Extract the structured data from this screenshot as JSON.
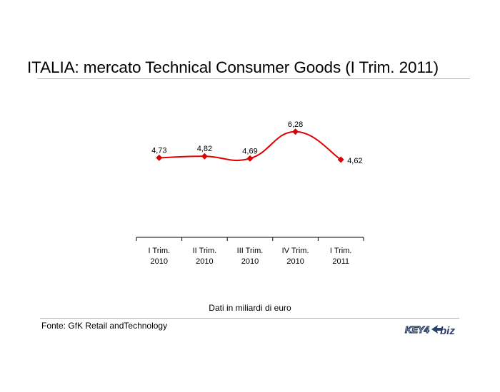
{
  "title": "ITALIA: mercato Technical Consumer Goods (I Trim. 2011)",
  "note": "Dati in miliardi di euro",
  "source": "Fonte: GfK Retail andTechnology",
  "logo": {
    "text_key": "KEY4",
    "text_biz": "biz"
  },
  "colors": {
    "series": "#e00000",
    "rule": "#b5b5b5",
    "logo": "#2a3f6a"
  },
  "chart_data": {
    "type": "line",
    "categories": [
      [
        "I Trim.",
        "2010"
      ],
      [
        "II Trim.",
        "2010"
      ],
      [
        "III Trim.",
        "2010"
      ],
      [
        "IV Trim.",
        "2010"
      ],
      [
        "I Trim.",
        "2011"
      ]
    ],
    "values": [
      4.73,
      4.82,
      4.69,
      6.28,
      4.62
    ],
    "data_labels": [
      "4,73",
      "4,82",
      "4,69",
      "6,28",
      "4,62"
    ],
    "ylim": [
      0,
      10
    ],
    "grid": false,
    "legend": "none",
    "marker": "diamond",
    "smooth": true
  }
}
